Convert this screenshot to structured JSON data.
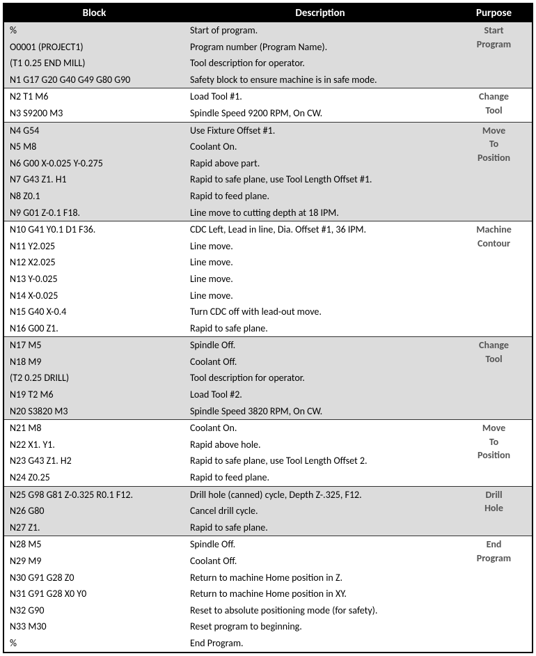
{
  "columns": [
    "Block",
    "Description",
    "Purpose"
  ],
  "groups": [
    {
      "purpose_lines": [
        "Start",
        "Program"
      ],
      "shade": true,
      "rows": [
        {
          "block": "%",
          "desc": "Start of program."
        },
        {
          "block": "O0001 (PROJECT1)",
          "desc": "Program number (Program Name)."
        },
        {
          "block": "(T1  0.25 END MILL)",
          "desc": "Tool description for operator."
        },
        {
          "block": "N1 G17 G20 G40 G49 G80 G90",
          "desc": "Safety block to ensure machine is in safe mode."
        }
      ]
    },
    {
      "purpose_lines": [
        "Change",
        "Tool"
      ],
      "shade": false,
      "rows": [
        {
          "block": "N2 T1 M6",
          "desc": "Load Tool #1."
        },
        {
          "block": "N3 S9200 M3",
          "desc": "Spindle Speed 9200 RPM, On CW."
        }
      ]
    },
    {
      "purpose_lines": [
        "Move",
        "To",
        "Position"
      ],
      "shade": true,
      "rows": [
        {
          "block": "N4 G54",
          "desc": "Use Fixture Offset #1."
        },
        {
          "block": "N5 M8",
          "desc": "Coolant On."
        },
        {
          "block": "N6 G00 X-0.025 Y-0.275",
          "desc": "Rapid above part."
        },
        {
          "block": "N7 G43 Z1. H1",
          "desc": "Rapid to safe plane, use Tool Length Offset #1."
        },
        {
          "block": "N8 Z0.1",
          "desc": "Rapid to feed plane."
        },
        {
          "block": "N9 G01 Z-0.1 F18.",
          "desc": "Line move to cutting depth at 18 IPM."
        }
      ]
    },
    {
      "purpose_lines": [
        "Machine",
        "Contour"
      ],
      "shade": false,
      "rows": [
        {
          "block": "N10 G41 Y0.1 D1 F36.",
          "desc": "CDC Left, Lead in line, Dia. Offset #1, 36 IPM."
        },
        {
          "block": "N11 Y2.025",
          "desc": "Line move."
        },
        {
          "block": "N12 X2.025",
          "desc": "Line move."
        },
        {
          "block": "N13 Y-0.025",
          "desc": "Line move."
        },
        {
          "block": "N14 X-0.025",
          "desc": "Line move."
        },
        {
          "block": "N15 G40 X-0.4",
          "desc": "Turn CDC off with lead-out move."
        },
        {
          "block": "N16 G00 Z1.",
          "desc": "Rapid to safe plane."
        }
      ]
    },
    {
      "purpose_lines": [
        "Change",
        "Tool"
      ],
      "shade": true,
      "rows": [
        {
          "block": "N17 M5",
          "desc": "Spindle Off."
        },
        {
          "block": "N18 M9",
          "desc": "Coolant Off."
        },
        {
          "block": "(T2  0.25 DRILL)",
          "desc": "Tool description for operator."
        },
        {
          "block": "N19 T2 M6",
          "desc": "Load Tool #2."
        },
        {
          "block": "N20 S3820 M3",
          "desc": "Spindle Speed 3820 RPM, On CW."
        }
      ]
    },
    {
      "purpose_lines": [
        "Move",
        "To",
        "Position"
      ],
      "shade": false,
      "rows": [
        {
          "block": "N21 M8",
          "desc": "Coolant On."
        },
        {
          "block": "N22 X1. Y1.",
          "desc": "Rapid above hole."
        },
        {
          "block": "N23 G43 Z1. H2",
          "desc": "Rapid to safe plane, use Tool Length Offset 2."
        },
        {
          "block": "N24 Z0.25",
          "desc": "Rapid to feed plane."
        }
      ]
    },
    {
      "purpose_lines": [
        "Drill",
        "Hole"
      ],
      "shade": true,
      "rows": [
        {
          "block": "N25 G98 G81 Z-0.325 R0.1 F12.",
          "desc": "Drill hole (canned) cycle, Depth Z-.325, F12."
        },
        {
          "block": "N26 G80",
          "desc": "Cancel drill cycle."
        },
        {
          "block": "N27 Z1.",
          "desc": "Rapid to safe plane."
        }
      ]
    },
    {
      "purpose_lines": [
        "End",
        "Program"
      ],
      "shade": false,
      "rows": [
        {
          "block": "N28 M5",
          "desc": "Spindle Off."
        },
        {
          "block": "N29 M9",
          "desc": "Coolant Off."
        },
        {
          "block": "N30 G91 G28 Z0",
          "desc": "Return to machine Home position in Z."
        },
        {
          "block": "N31 G91 G28 X0 Y0",
          "desc": "Return to machine Home position in XY."
        },
        {
          "block": "N32 G90",
          "desc": "Reset to absolute positioning mode (for safety)."
        },
        {
          "block": "N33 M30",
          "desc": "Reset program to beginning."
        },
        {
          "block": "%",
          "desc": "End Program."
        }
      ]
    }
  ]
}
